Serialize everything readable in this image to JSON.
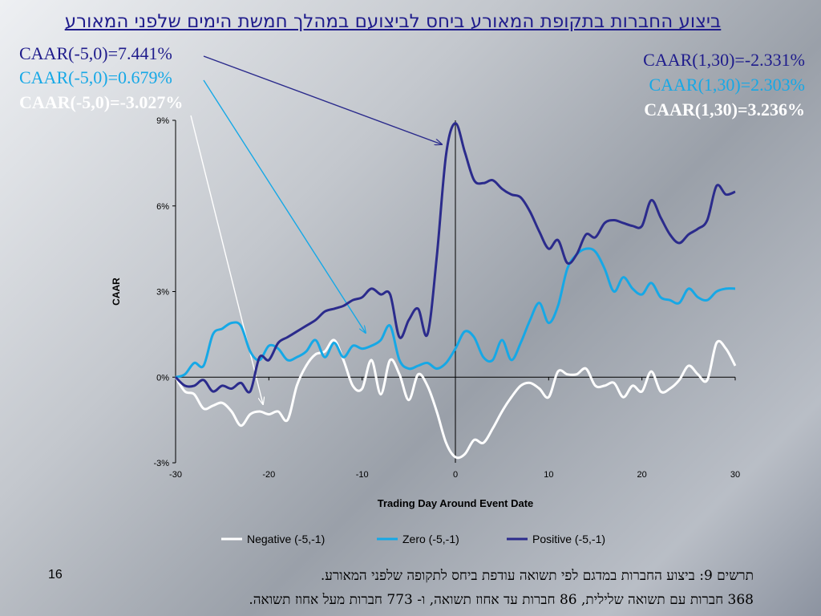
{
  "title": "ביצוע החברות בתקופת המאורע ביחס לביצועם במהלך חמשת הימים שלפני המאורע",
  "annotations_left": [
    {
      "text": "CAAR(-5,0)=7.441%",
      "color": "#1f1c8c",
      "bold": false
    },
    {
      "text": "CAAR(-5,0)=0.679%",
      "color": "#16a8e6",
      "bold": false
    },
    {
      "text": "CAAR(-5,0)=-3.027%",
      "color": "#ffffff",
      "bold": true
    }
  ],
  "annotations_right": [
    {
      "text": "CAAR(1,30)=-2.331%",
      "color": "#1f1c8c",
      "bold": false
    },
    {
      "text": "CAAR(1,30)=2.303%",
      "color": "#16a8e6",
      "bold": false
    },
    {
      "text": "CAAR(1,30)=3.236%",
      "color": "#ffffff",
      "bold": true
    }
  ],
  "page_number": "16",
  "caption_line1": "תרשים 9: ביצוע החברות במדגם לפי תשואה עודפת ביחס לתקופה שלפני המאורע.",
  "caption_line2": "368 חברות עם תשואה שלילית, 86 חברות עד אחוז תשואה, ו- 773 חברות מעל אחוז תשואה.",
  "chart_data": {
    "type": "line",
    "xlabel": "Trading Day Around Event Date",
    "ylabel": "CAAR",
    "xlim": [
      -30,
      30
    ],
    "ylim": [
      -3,
      9
    ],
    "xticks": [
      "-30",
      "-20",
      "-10",
      "0",
      "10",
      "20",
      "30"
    ],
    "yticks": [
      "-3%",
      "0%",
      "3%",
      "6%",
      "9%"
    ],
    "x": [
      -30,
      -29,
      -28,
      -27,
      -26,
      -25,
      -24,
      -23,
      -22,
      -21,
      -20,
      -19,
      -18,
      -17,
      -16,
      -15,
      -14,
      -13,
      -12,
      -11,
      -10,
      -9,
      -8,
      -7,
      -6,
      -5,
      -4,
      -3,
      -2,
      -1,
      0,
      1,
      2,
      3,
      4,
      5,
      6,
      7,
      8,
      9,
      10,
      11,
      12,
      13,
      14,
      15,
      16,
      17,
      18,
      19,
      20,
      21,
      22,
      23,
      24,
      25,
      26,
      27,
      28,
      29,
      30
    ],
    "series": [
      {
        "name": "Negative (-5,-1)",
        "color": "#ffffff",
        "values": [
          0.0,
          -0.5,
          -0.6,
          -1.1,
          -1.0,
          -0.9,
          -1.2,
          -1.7,
          -1.3,
          -1.2,
          -1.3,
          -1.2,
          -1.5,
          -0.3,
          0.4,
          0.8,
          0.9,
          1.3,
          0.6,
          -0.3,
          -0.4,
          0.6,
          -0.6,
          0.6,
          0.1,
          -0.8,
          0.1,
          -0.3,
          -1.2,
          -2.3,
          -2.8,
          -2.7,
          -2.2,
          -2.3,
          -1.8,
          -1.2,
          -0.7,
          -0.3,
          -0.2,
          -0.4,
          -0.7,
          0.2,
          0.1,
          0.1,
          0.3,
          -0.3,
          -0.3,
          -0.2,
          -0.7,
          -0.3,
          -0.5,
          0.2,
          -0.5,
          -0.4,
          -0.1,
          0.4,
          0.1,
          -0.1,
          1.2,
          1.0,
          0.4
        ]
      },
      {
        "name": "Zero (-5,-1)",
        "color": "#16a8e6",
        "values": [
          0.0,
          0.1,
          0.5,
          0.4,
          1.5,
          1.7,
          1.9,
          1.8,
          0.9,
          0.6,
          1.1,
          1.0,
          0.6,
          0.7,
          0.9,
          1.3,
          0.7,
          1.2,
          0.7,
          1.1,
          1.0,
          1.1,
          1.3,
          1.8,
          0.6,
          0.3,
          0.4,
          0.5,
          0.3,
          0.5,
          1.0,
          1.6,
          1.4,
          0.7,
          0.6,
          1.3,
          0.6,
          1.2,
          2.0,
          2.6,
          1.9,
          2.5,
          3.8,
          4.3,
          4.5,
          4.4,
          3.8,
          3.0,
          3.5,
          3.1,
          2.9,
          3.3,
          2.8,
          2.7,
          2.6,
          3.1,
          2.8,
          2.7,
          3.0,
          3.1,
          3.1
        ]
      },
      {
        "name": "Positive (-5,-1)",
        "color": "#2b2b8c",
        "values": [
          0.0,
          -0.3,
          -0.3,
          -0.1,
          -0.5,
          -0.3,
          -0.4,
          -0.2,
          -0.5,
          0.7,
          0.6,
          1.2,
          1.4,
          1.6,
          1.8,
          2.0,
          2.3,
          2.4,
          2.5,
          2.7,
          2.8,
          3.1,
          2.9,
          2.9,
          1.4,
          2.0,
          2.4,
          1.5,
          4.2,
          7.8,
          8.9,
          7.9,
          6.9,
          6.8,
          6.9,
          6.6,
          6.4,
          6.3,
          5.8,
          5.1,
          4.5,
          4.8,
          4.0,
          4.3,
          5.0,
          4.9,
          5.4,
          5.5,
          5.4,
          5.3,
          5.3,
          6.2,
          5.6,
          5.0,
          4.7,
          5.0,
          5.2,
          5.5,
          6.7,
          6.4,
          6.5
        ]
      }
    ],
    "legend_position": "bottom",
    "grid": false
  }
}
